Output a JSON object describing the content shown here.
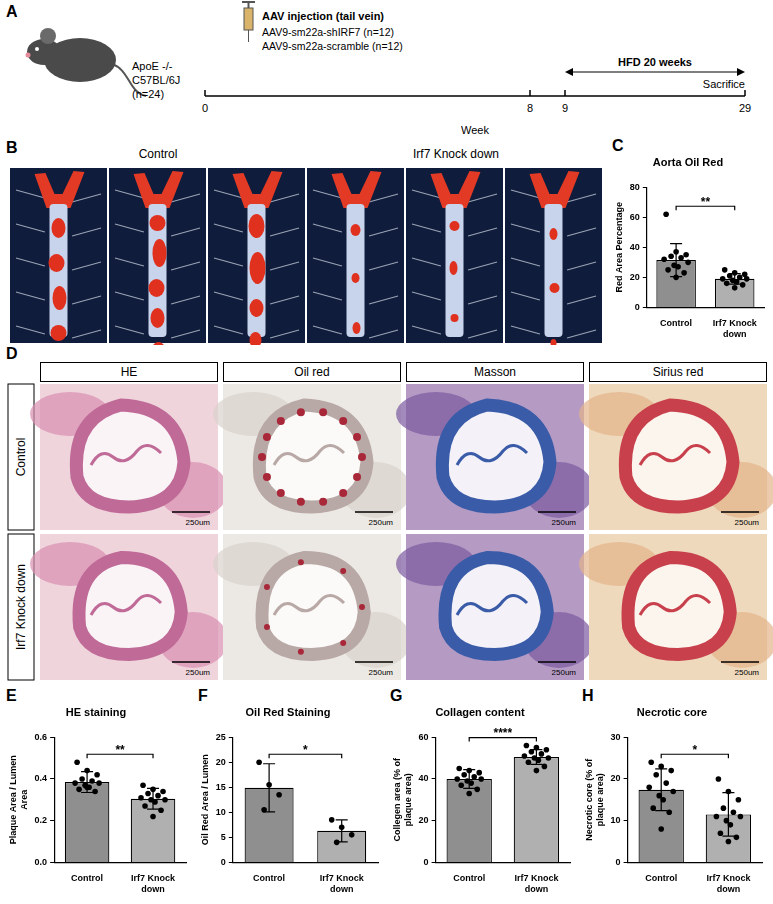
{
  "panels": {
    "A": {
      "letter": "A",
      "subject": [
        "ApoE -/-",
        "C57BL/6J",
        "(n=24)"
      ],
      "injection": "AAV injection (tail vein)",
      "groups": [
        "AAV9-sm22a-shIRF7 (n=12)",
        "AAV9-sm22a-scramble (n=12)"
      ],
      "diet": "HFD 20 weeks",
      "end": "Sacrifice",
      "ticks": [
        0,
        8,
        9,
        29
      ],
      "axis_title": "Week"
    },
    "B": {
      "letter": "B",
      "groups": [
        "Control",
        "Irf7 Knock down"
      ]
    },
    "D": {
      "letter": "D",
      "columns": [
        "HE",
        "Oil red",
        "Masson",
        "Sirius red"
      ],
      "rows": [
        "Control",
        "Irf7 Knock down"
      ],
      "scale_bar": "250um"
    }
  },
  "chart_data": [
    {
      "letter": "C",
      "type": "bar",
      "title": "Aorta Oil Red",
      "y_label": "Red Area Percentage",
      "categories": [
        "Control",
        "Irf7 Knock down"
      ],
      "values": [
        31.5,
        19
      ],
      "error": [
        11,
        3.5
      ],
      "points": [
        [
          62,
          37,
          35,
          34,
          33,
          32,
          30,
          28,
          27,
          25,
          23,
          20
        ],
        [
          25,
          23,
          22,
          21,
          20,
          19,
          19,
          18,
          17,
          16,
          15,
          13
        ]
      ],
      "colors": [
        "#8f8f8f",
        "#b0b0b0"
      ],
      "ylim": [
        0,
        80
      ],
      "yticks": [
        0,
        20,
        40,
        60,
        80
      ],
      "grid": false,
      "annotation": "**"
    },
    {
      "letter": "E",
      "type": "bar",
      "title": "HE staining",
      "y_label": "Plaque Area / Lumen Area",
      "categories": [
        "Control",
        "Irf7 Knock down"
      ],
      "values": [
        0.385,
        0.305
      ],
      "error": [
        0.05,
        0.05
      ],
      "points": [
        [
          0.48,
          0.44,
          0.42,
          0.4,
          0.39,
          0.38,
          0.38,
          0.37,
          0.36,
          0.35,
          0.34,
          0.36
        ],
        [
          0.37,
          0.35,
          0.34,
          0.33,
          0.32,
          0.31,
          0.3,
          0.3,
          0.29,
          0.27,
          0.25,
          0.22
        ]
      ],
      "colors": [
        "#8f8f8f",
        "#b0b0b0"
      ],
      "ylim": [
        0,
        0.6
      ],
      "yticks": [
        {
          "value": 0,
          "label": "0.0"
        },
        0.2,
        0.4,
        0.6
      ],
      "grid": false,
      "annotation": "**"
    },
    {
      "letter": "F",
      "type": "bar",
      "title": "Oil Red Staining",
      "y_label": "Oil Red Area / Lumen",
      "categories": [
        "Control",
        "Irf7 Knock down"
      ],
      "values": [
        14.9,
        6.3
      ],
      "error": [
        4.8,
        2.2
      ],
      "points": [
        [
          20,
          15.5,
          13.5,
          10.5
        ],
        [
          8.5,
          7,
          5.5,
          4
        ]
      ],
      "colors": [
        "#8f8f8f",
        "#b0b0b0"
      ],
      "ylim": [
        0,
        25
      ],
      "yticks": [
        0,
        5,
        10,
        15,
        20,
        25
      ],
      "grid": false,
      "annotation": "*"
    },
    {
      "letter": "G",
      "type": "bar",
      "title": "Collagen content",
      "y_label": "Collegen area (% of plaque area)",
      "categories": [
        "Control",
        "Irf7 Knock down"
      ],
      "values": [
        40,
        50.5
      ],
      "error": [
        4.5,
        3.5
      ],
      "points": [
        [
          45,
          44,
          43,
          42,
          41,
          40,
          40,
          39,
          38,
          37,
          35,
          33
        ],
        [
          56,
          55,
          54,
          53,
          52,
          51,
          50,
          50,
          49,
          48,
          46,
          44
        ]
      ],
      "colors": [
        "#8f8f8f",
        "#b0b0b0"
      ],
      "ylim": [
        0,
        60
      ],
      "yticks": [
        0,
        20,
        40,
        60
      ],
      "grid": false,
      "annotation": "****"
    },
    {
      "letter": "H",
      "type": "bar",
      "title": "Necrotic core",
      "y_label": "Necrotic core (% of plaque area)",
      "categories": [
        "Control",
        "Irf7 Knock down"
      ],
      "values": [
        17.4,
        11.5
      ],
      "error": [
        5,
        5.2
      ],
      "points": [
        [
          24,
          23,
          22,
          21,
          19,
          18,
          17,
          16,
          15,
          13,
          12,
          8
        ],
        [
          20,
          17,
          15,
          13,
          12,
          11,
          11,
          10,
          9,
          7,
          6,
          5
        ]
      ],
      "colors": [
        "#8f8f8f",
        "#b0b0b0"
      ],
      "ylim": [
        0,
        30
      ],
      "yticks": [
        0,
        10,
        20,
        30
      ],
      "grid": false,
      "annotation": "*"
    }
  ]
}
